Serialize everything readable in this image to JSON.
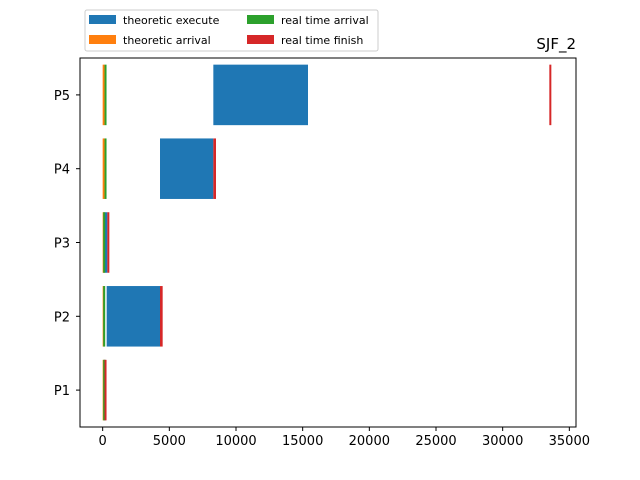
{
  "chart_data": {
    "type": "bar",
    "orientation": "horizontal",
    "title": "SJF_2",
    "xlabel": "",
    "ylabel": "",
    "xlim": [
      -1700,
      35500
    ],
    "xticks": [
      0,
      5000,
      10000,
      15000,
      20000,
      25000,
      30000,
      35000
    ],
    "xtick_labels": [
      "0",
      "5000",
      "10000",
      "15000",
      "20000",
      "25000",
      "30000",
      "35000"
    ],
    "categories": [
      "P1",
      "P2",
      "P3",
      "P4",
      "P5"
    ],
    "grid": false,
    "legend_position": "above-left",
    "legend": [
      {
        "label": "theoretic execute",
        "color": "#1f77b4"
      },
      {
        "label": "theoretic arrival",
        "color": "#ff7f0e"
      },
      {
        "label": "real time arrival",
        "color": "#2ca02c"
      },
      {
        "label": "real time finish",
        "color": "#d62728"
      }
    ],
    "series": [
      {
        "name": "theoretic execute",
        "color": "#1f77b4",
        "bars": [
          {
            "category": "P1",
            "start": 80,
            "end": 140
          },
          {
            "category": "P2",
            "start": 300,
            "end": 4300
          },
          {
            "category": "P3",
            "start": 150,
            "end": 350
          },
          {
            "category": "P4",
            "start": 4300,
            "end": 8300
          },
          {
            "category": "P5",
            "start": 8300,
            "end": 15400
          }
        ]
      },
      {
        "name": "theoretic arrival",
        "color": "#ff7f0e",
        "bars": [
          {
            "category": "P1",
            "start": 0,
            "end": 40
          },
          {
            "category": "P2",
            "start": 0,
            "end": 40
          },
          {
            "category": "P3",
            "start": 0,
            "end": 40
          },
          {
            "category": "P4",
            "start": 0,
            "end": 40
          },
          {
            "category": "P5",
            "start": 0,
            "end": 40
          }
        ]
      },
      {
        "name": "real time arrival",
        "color": "#2ca02c",
        "bars": [
          {
            "category": "P1",
            "start": 40,
            "end": 140
          },
          {
            "category": "P2",
            "start": 40,
            "end": 140
          },
          {
            "category": "P3",
            "start": 40,
            "end": 140
          },
          {
            "category": "P4",
            "start": 140,
            "end": 240
          },
          {
            "category": "P5",
            "start": 140,
            "end": 240
          }
        ]
      },
      {
        "name": "real time finish",
        "color": "#d62728",
        "bars": [
          {
            "category": "P1",
            "start": 140,
            "end": 240
          },
          {
            "category": "P2",
            "start": 4300,
            "end": 4500
          },
          {
            "category": "P3",
            "start": 350,
            "end": 450
          },
          {
            "category": "P4",
            "start": 8300,
            "end": 8500
          },
          {
            "category": "P5",
            "start": 33500,
            "end": 33650
          }
        ]
      }
    ]
  }
}
